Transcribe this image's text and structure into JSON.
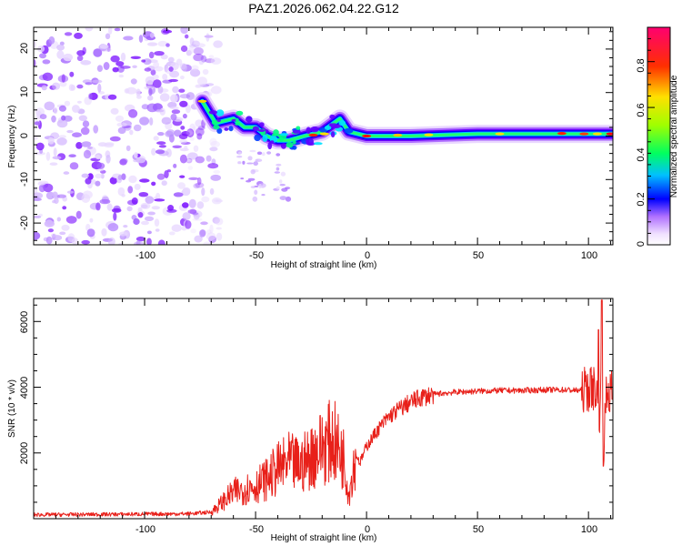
{
  "title": "PAZ1.2026.062.04.22.G12",
  "chart_data": [
    {
      "type": "heatmap",
      "title": "PAZ1.2026.062.04.22.G12",
      "xlabel": "Height of straight line (km)",
      "ylabel": "Frequency (Hz)",
      "xlim": [
        -150,
        111
      ],
      "ylim": [
        -25,
        25
      ],
      "xticks": [
        -100,
        -50,
        0,
        50,
        100
      ],
      "yticks": [
        20,
        10,
        0,
        -10,
        -20
      ],
      "colorbar": {
        "label": "Normalized spectral amplitude",
        "range": [
          0,
          0.95
        ],
        "ticks": [
          0.0,
          0.2,
          0.4,
          0.6,
          0.8
        ],
        "colormap": [
          "#ffffff",
          "#7a00ff",
          "#0000ff",
          "#00ffff",
          "#00ff00",
          "#ffff00",
          "#ff8000",
          "#ff0000",
          "#ff007f"
        ]
      },
      "ridge": {
        "description": "signal frequency ridge vs height",
        "points": [
          {
            "x": -74,
            "y": 8
          },
          {
            "x": -68,
            "y": 3
          },
          {
            "x": -60,
            "y": 4
          },
          {
            "x": -55,
            "y": 2
          },
          {
            "x": -50,
            "y": 2
          },
          {
            "x": -45,
            "y": 0
          },
          {
            "x": -40,
            "y": -1
          },
          {
            "x": -35,
            "y": -1
          },
          {
            "x": -28,
            "y": 0
          },
          {
            "x": -20,
            "y": 1
          },
          {
            "x": -12,
            "y": 4
          },
          {
            "x": -8,
            "y": 1
          },
          {
            "x": 0,
            "y": 0
          },
          {
            "x": 20,
            "y": 0
          },
          {
            "x": 50,
            "y": 0.5
          },
          {
            "x": 80,
            "y": 0.5
          },
          {
            "x": 100,
            "y": 0.5
          },
          {
            "x": 111,
            "y": 0.5
          }
        ]
      },
      "noise_region_x": [
        -150,
        -72
      ]
    },
    {
      "type": "line",
      "xlabel": "Height of straight line (km)",
      "ylabel": "SNR (10 * v/v)",
      "xlim": [
        -150,
        111
      ],
      "ylim": [
        0,
        6700
      ],
      "xticks": [
        -100,
        -50,
        0,
        50,
        100
      ],
      "yticks": [
        2000,
        4000,
        6000
      ],
      "color": "#e8201a",
      "series": [
        {
          "name": "SNR",
          "x": [
            -150,
            -120,
            -100,
            -80,
            -70,
            -65,
            -60,
            -55,
            -50,
            -45,
            -40,
            -35,
            -30,
            -25,
            -20,
            -15,
            -10,
            -8,
            -5,
            -3,
            0,
            5,
            10,
            15,
            20,
            25,
            30,
            35,
            40,
            50,
            60,
            70,
            80,
            90,
            95,
            100,
            103,
            105,
            106,
            107,
            108,
            110,
            111
          ],
          "y": [
            120,
            130,
            140,
            150,
            200,
            500,
            800,
            900,
            1000,
            1200,
            1500,
            1700,
            1600,
            1900,
            2200,
            2400,
            1800,
            700,
            2000,
            1700,
            2200,
            2700,
            3100,
            3350,
            3550,
            3700,
            3780,
            3820,
            3850,
            3880,
            3900,
            3900,
            3920,
            3920,
            3900,
            3950,
            4000,
            3300,
            4500,
            2200,
            3800,
            3850,
            3850
          ]
        }
      ]
    }
  ]
}
